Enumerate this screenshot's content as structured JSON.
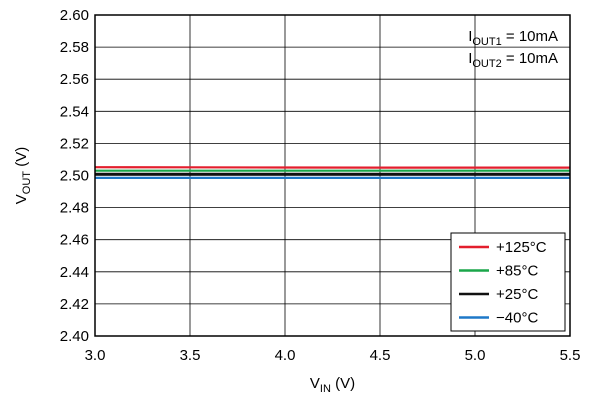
{
  "chart_data": {
    "type": "line",
    "title": "",
    "xlabel": {
      "main": "V",
      "sub": "IN",
      "unit": " (V)"
    },
    "ylabel": {
      "main": "V",
      "sub": "OUT",
      "unit": " (V)"
    },
    "xlim": [
      3.0,
      5.5
    ],
    "ylim": [
      2.4,
      2.6
    ],
    "xticks": [
      "3.0",
      "3.5",
      "4.0",
      "4.5",
      "5.0",
      "5.5"
    ],
    "yticks": [
      "2.40",
      "2.42",
      "2.44",
      "2.46",
      "2.48",
      "2.50",
      "2.52",
      "2.54",
      "2.56",
      "2.58",
      "2.60"
    ],
    "grid": true,
    "legend_position": "bottom-right",
    "annotations": [
      {
        "main": "I",
        "sub": "OUT1",
        "text": " = 10mA"
      },
      {
        "main": "I",
        "sub": "OUT2",
        "text": " = 10mA"
      }
    ],
    "series": [
      {
        "name": "+125°C",
        "color": "#e31e2d",
        "x": [
          3.0,
          3.5,
          4.0,
          4.5,
          5.0,
          5.5
        ],
        "y": [
          2.5052,
          2.5051,
          2.505,
          2.5049,
          2.5049,
          2.5049
        ]
      },
      {
        "name": "+85°C",
        "color": "#1aa64a",
        "x": [
          3.0,
          3.5,
          4.0,
          4.5,
          5.0,
          5.5
        ],
        "y": [
          2.503,
          2.503,
          2.503,
          2.503,
          2.503,
          2.503
        ]
      },
      {
        "name": "+25°C",
        "color": "#111111",
        "x": [
          3.0,
          3.5,
          4.0,
          4.5,
          5.0,
          5.5
        ],
        "y": [
          2.501,
          2.501,
          2.501,
          2.501,
          2.501,
          2.501
        ]
      },
      {
        "name": "−40°C",
        "color": "#1e78c8",
        "x": [
          3.0,
          3.5,
          4.0,
          4.5,
          5.0,
          5.5
        ],
        "y": [
          2.4985,
          2.4985,
          2.4985,
          2.4985,
          2.4985,
          2.4985
        ]
      }
    ]
  }
}
